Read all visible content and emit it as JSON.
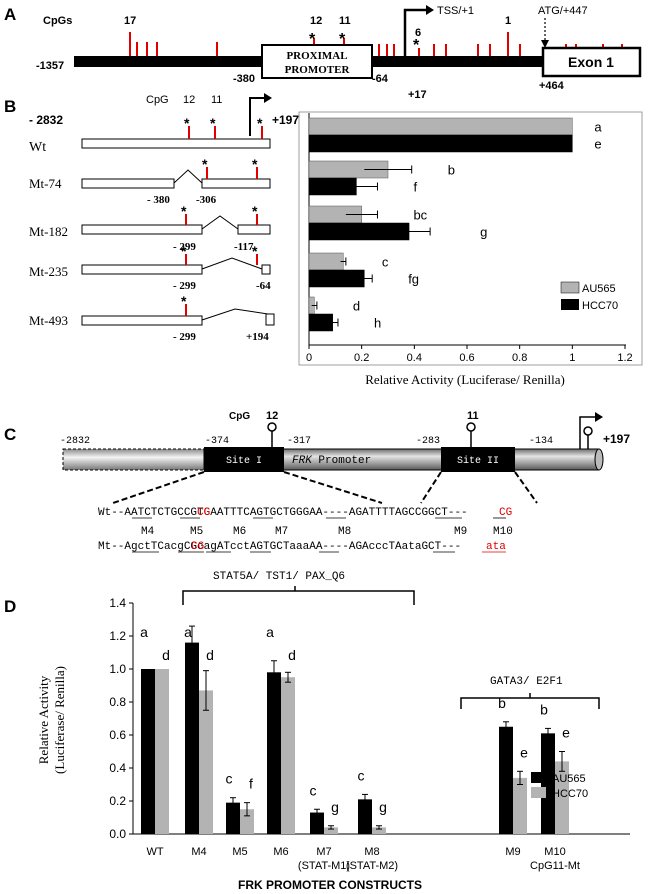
{
  "panelA": {
    "panel_label": "A",
    "cpgs_label": "CpGs",
    "cpg_numbers": [
      "17",
      "12",
      "11",
      "6",
      "1"
    ],
    "tss_label": "TSS/+1",
    "atg_label": "ATG/+447",
    "promoter_line1": "PROXIMAL",
    "promoter_line2": "PROMOTER",
    "exon_label": "Exon 1",
    "positions": {
      "start": "-1357",
      "prom_left": "-380",
      "prom_right": "-64",
      "tss_right": "+17",
      "exon_left": "+464"
    }
  },
  "panelB": {
    "panel_label": "B",
    "top_left": "- 2832",
    "top_right": "+197",
    "cpg_label": "CpG",
    "cpg_numbers": [
      "12",
      "11"
    ],
    "constructs": [
      {
        "name": "Wt",
        "labels": []
      },
      {
        "name": "Mt-74",
        "labels": [
          "- 380",
          "-306"
        ]
      },
      {
        "name": "Mt-182",
        "labels": [
          "- 299",
          "-117"
        ]
      },
      {
        "name": "Mt-235",
        "labels": [
          "- 299",
          "-64"
        ]
      },
      {
        "name": "Mt-493",
        "labels": [
          "- 299",
          "+194"
        ]
      }
    ],
    "chart_data": {
      "type": "bar",
      "orientation": "horizontal",
      "categories": [
        "Wt",
        "Mt-74",
        "Mt-182",
        "Mt-235",
        "Mt-493"
      ],
      "series": [
        {
          "name": "AU565",
          "color": "#b3b3b3",
          "values": [
            1.0,
            0.3,
            0.2,
            0.13,
            0.02
          ],
          "errors": [
            0,
            0.09,
            0.06,
            0.01,
            0.01
          ],
          "letters": [
            "a",
            "b",
            "bc",
            "c",
            "d"
          ]
        },
        {
          "name": "HCC70",
          "color": "#000000",
          "values": [
            1.0,
            0.18,
            0.38,
            0.21,
            0.09
          ],
          "errors": [
            0,
            0.08,
            0.08,
            0.03,
            0.02
          ],
          "letters": [
            "e",
            "f",
            "g",
            "fg",
            "h"
          ]
        }
      ],
      "xlim": [
        0,
        1.2
      ],
      "xticks": [
        "0",
        "0.2",
        "0.4",
        "0.6",
        "0.8",
        "1",
        "1.2"
      ],
      "xlabel": "Relative Activity (Luciferase/ Renilla)",
      "legend": [
        "AU565",
        "HCC70"
      ]
    }
  },
  "panelC": {
    "panel_label": "C",
    "positions": {
      "p2832": "-2832",
      "p374": "-374",
      "p317": "-317",
      "p283": "-283",
      "p134": "-134",
      "p197": "+197"
    },
    "cpg_label": "CpG",
    "cpg12": "12",
    "cpg11": "11",
    "site1": "Site I",
    "site2": "Site II",
    "promoter_italic": "FRK",
    "promoter_text": " Promoter",
    "wt_line": "Wt--AATCTCTGCCGTGAATTTCAGTGCTGGGAA----AGATTTTAGCCGGCT---",
    "mut_labels": [
      "M4",
      "M5",
      "M6",
      "M7",
      "M8",
      "M9",
      "M10"
    ],
    "mt_line": "Mt--AgctTCacgCGcagATcctAGTGCTaaaAA----AGAcccTAataGCT---"
  },
  "panelD": {
    "panel_label": "D",
    "group1_label": "STAT5A/ TST1/ PAX_Q6",
    "group2_label": "GATA3/ E2F1",
    "chart_data": {
      "type": "bar",
      "categories": [
        "WT",
        "M4",
        "M5",
        "M6",
        "M7",
        "M8",
        "M9",
        "M10"
      ],
      "category_sublabels": [
        "",
        "",
        "",
        "",
        "(STAT-M1)",
        "(STAT-M2)",
        "",
        "CpG11-Mt"
      ],
      "series": [
        {
          "name": "AU565",
          "color": "#000000",
          "values": [
            1.0,
            1.16,
            0.19,
            0.98,
            0.13,
            0.21,
            0.65,
            0.61
          ],
          "errors": [
            0,
            0.1,
            0.03,
            0.07,
            0.02,
            0.03,
            0.03,
            0.03
          ],
          "letters": [
            "a",
            "a",
            "c",
            "a",
            "c",
            "c",
            "b",
            "b"
          ]
        },
        {
          "name": "HCC70",
          "color": "#b3b3b3",
          "values": [
            1.0,
            0.87,
            0.15,
            0.95,
            0.04,
            0.04,
            0.34,
            0.44
          ],
          "errors": [
            0,
            0.12,
            0.04,
            0.03,
            0.01,
            0.01,
            0.04,
            0.06
          ],
          "letters": [
            "d",
            "d",
            "f",
            "d",
            "g",
            "g",
            "e",
            "e"
          ]
        }
      ],
      "ylim": [
        0,
        1.4
      ],
      "yticks": [
        "0.0",
        "0.2",
        "0.4",
        "0.6",
        "0.8",
        "1.0",
        "1.2",
        "1.4"
      ],
      "ylabel_line1": "Relative Activity",
      "ylabel_line2": "(Luciferase/ Renilla)",
      "xlabel": "FRK PROMOTER CONSTRUCTS",
      "legend": [
        "AU565",
        "HCC70"
      ]
    }
  }
}
